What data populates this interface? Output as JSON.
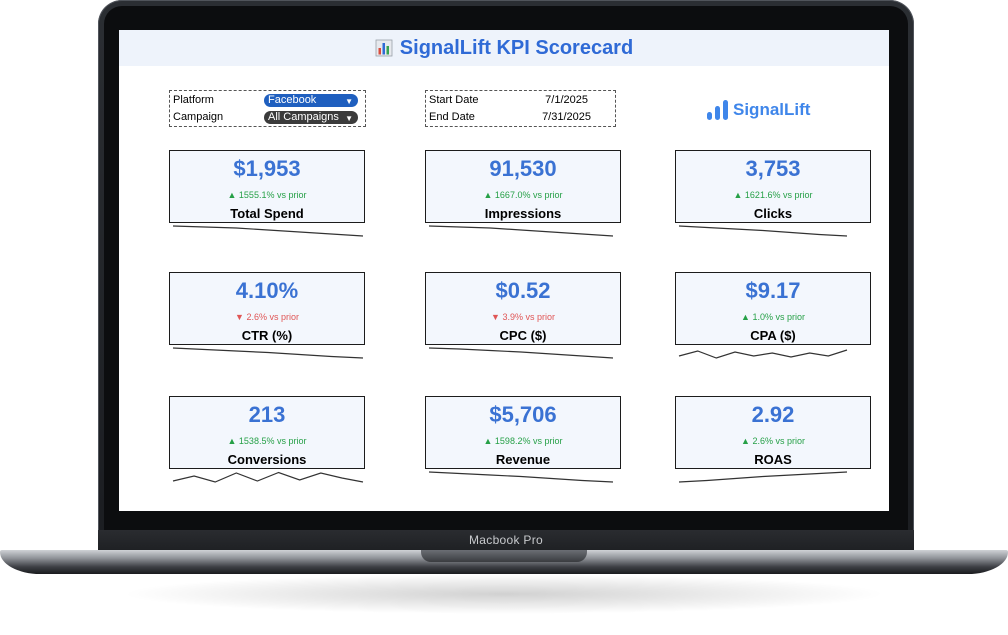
{
  "device": {
    "label": "Macbook Pro"
  },
  "dashboard": {
    "title": "SignalLift KPI Scorecard",
    "brand": "SignalLift",
    "filters": {
      "platform_label": "Platform",
      "platform_value": "Facebook",
      "campaign_label": "Campaign",
      "campaign_value": "All Campaigns"
    },
    "dates": {
      "start_label": "Start Date",
      "start_value": "7/1/2025",
      "end_label": "End Date",
      "end_value": "7/31/2025"
    },
    "kpis": [
      {
        "value": "$1,953",
        "delta": "▲ 1555.1% vs prior",
        "direction": "up",
        "label": "Total Spend",
        "trend": [
          1.0,
          0.9,
          0.8,
          0.6,
          0.4,
          0.2,
          0.0
        ]
      },
      {
        "value": "91,530",
        "delta": "▲ 1667.0% vs prior",
        "direction": "up",
        "label": "Impressions",
        "trend": [
          1.0,
          0.9,
          0.8,
          0.6,
          0.4,
          0.2,
          0.0
        ]
      },
      {
        "value": "3,753",
        "delta": "▲ 1621.6% vs prior",
        "direction": "up",
        "label": "Clicks",
        "trend": [
          1.0,
          0.85,
          0.7,
          0.55,
          0.35,
          0.15,
          0.0
        ]
      },
      {
        "value": "4.10%",
        "delta": "▼ 2.6% vs prior",
        "direction": "down",
        "label": "CTR (%)",
        "trend": [
          1.0,
          0.85,
          0.7,
          0.55,
          0.35,
          0.15,
          0.0
        ]
      },
      {
        "value": "$0.52",
        "delta": "▼ 3.9% vs prior",
        "direction": "down",
        "label": "CPC ($)",
        "trend": [
          1.0,
          0.9,
          0.75,
          0.6,
          0.4,
          0.2,
          0.0
        ]
      },
      {
        "value": "$9.17",
        "delta": "▲ 1.0% vs prior",
        "direction": "up",
        "label": "CPA ($)",
        "trend": [
          0.2,
          0.7,
          0.0,
          0.6,
          0.2,
          0.5,
          0.1,
          0.5,
          0.2,
          0.8
        ]
      },
      {
        "value": "213",
        "delta": "▲ 1538.5% vs prior",
        "direction": "up",
        "label": "Conversions",
        "trend": [
          0.1,
          0.6,
          0.0,
          0.9,
          0.1,
          0.95,
          0.2,
          0.9,
          0.4,
          0.0
        ]
      },
      {
        "value": "$5,706",
        "delta": "▲ 1598.2% vs prior",
        "direction": "up",
        "label": "Revenue",
        "trend": [
          1.0,
          0.85,
          0.7,
          0.55,
          0.35,
          0.15,
          0.0
        ]
      },
      {
        "value": "2.92",
        "delta": "▲ 2.6% vs prior",
        "direction": "up",
        "label": "ROAS",
        "trend": [
          0.0,
          0.15,
          0.35,
          0.55,
          0.7,
          0.85,
          1.0
        ]
      }
    ]
  },
  "colors": {
    "accent": "#3a72d3",
    "up": "#26a047",
    "down": "#e05656",
    "card_bg": "#f3f7fd"
  }
}
